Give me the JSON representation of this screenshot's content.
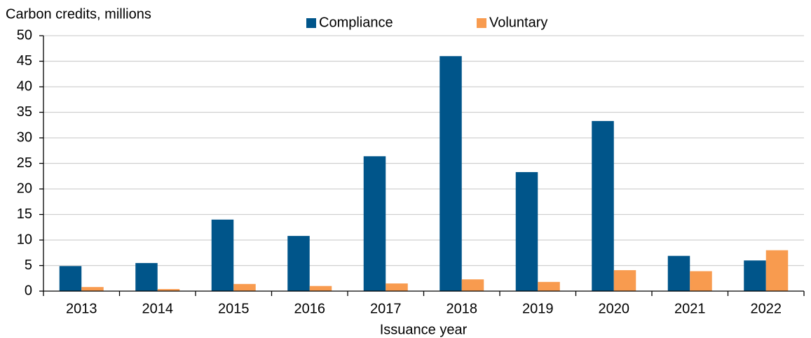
{
  "chart_data": {
    "type": "bar",
    "y_axis_label": "Carbon credits, millions",
    "x_axis_label": "Issuance year",
    "categories": [
      "2013",
      "2014",
      "2015",
      "2016",
      "2017",
      "2018",
      "2019",
      "2020",
      "2021",
      "2022"
    ],
    "series": [
      {
        "name": "Compliance",
        "color": "#00558a",
        "values": [
          4.9,
          5.5,
          14.0,
          10.8,
          26.4,
          46.0,
          23.3,
          33.3,
          6.9,
          6.0
        ]
      },
      {
        "name": "Voluntary",
        "color": "#f89b4f",
        "values": [
          0.8,
          0.4,
          1.4,
          1.0,
          1.5,
          2.3,
          1.8,
          4.1,
          3.9,
          8.0
        ]
      }
    ],
    "ylim": [
      0,
      50
    ],
    "yticks": [
      0,
      5,
      10,
      15,
      20,
      25,
      30,
      35,
      40,
      45,
      50
    ],
    "grid": true,
    "legend": "top"
  }
}
